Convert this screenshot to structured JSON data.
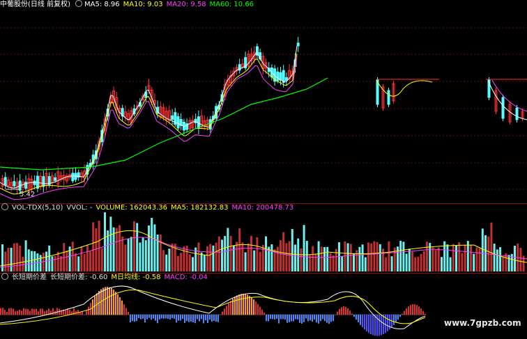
{
  "price_panel": {
    "stock_name": "中葡股份",
    "period": "(日线 前复权)",
    "ma5_label": "MA5: 8.96",
    "ma10_label": "MA10: 9.03",
    "ma20_label": "MA20: 9.58",
    "ma60_label": "MA60: 10.66",
    "low_label": "5.42",
    "colors": {
      "ma5": "#ffffff",
      "ma10": "#ffff00",
      "ma20": "#ff40ff",
      "ma60": "#00ff00",
      "up": "#ff3232",
      "down": "#54ffff"
    }
  },
  "volume_panel": {
    "indicator": "VOL-TDX(5,10)",
    "vvol_label": "VVOL: -",
    "volume_label": "VOLUME: 162043.36",
    "ma5_label": "MA5: 182132.83",
    "ma10_label": "MA10: 200478.73"
  },
  "macd_panel": {
    "indicator": "长短期价差",
    "diff_label": "长短期价差: -0.60",
    "dea_label": "M日均线: -0.58",
    "macd_label": "MACD: -0.04"
  },
  "watermark": "www.7gpzb.com",
  "chart_data": {
    "type": "candlestick",
    "title": "中葡股份 (日线 前复权)",
    "series": [
      {
        "name": "MA5",
        "values": [
          8.96
        ]
      },
      {
        "name": "MA10",
        "values": [
          9.03
        ]
      },
      {
        "name": "MA20",
        "values": [
          9.58
        ]
      },
      {
        "name": "MA60",
        "values": [
          10.66
        ]
      }
    ],
    "annotations": [
      "5.42"
    ]
  }
}
